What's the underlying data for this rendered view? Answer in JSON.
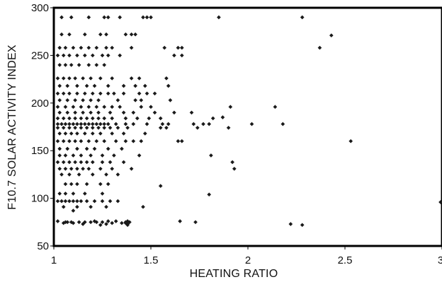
{
  "chart_data": {
    "type": "scatter",
    "title": "",
    "xlabel": "HEATING RATIO",
    "ylabel": "F10.7 SOLAR ACTIVITY INDEX",
    "xlim": [
      1,
      3
    ],
    "ylim": [
      50,
      300
    ],
    "x_ticks": [
      1,
      1.5,
      2,
      2.5,
      3
    ],
    "x_tick_labels": [
      "1",
      "1.5",
      "2",
      "2.5",
      "3"
    ],
    "y_ticks": [
      50,
      100,
      150,
      200,
      250,
      300
    ],
    "y_tick_labels": [
      "50",
      "100",
      "150",
      "200",
      "250",
      "300"
    ],
    "grid": false,
    "legend": "none",
    "series": [
      {
        "marker_color": "#1a1a1a",
        "points": [
          [
            1.04,
            290
          ],
          [
            1.09,
            290
          ],
          [
            1.18,
            290
          ],
          [
            1.26,
            290
          ],
          [
            1.28,
            290
          ],
          [
            1.34,
            290
          ],
          [
            1.46,
            290
          ],
          [
            1.48,
            290
          ],
          [
            1.5,
            290
          ],
          [
            1.85,
            290
          ],
          [
            2.28,
            290
          ],
          [
            1.04,
            272
          ],
          [
            1.08,
            272
          ],
          [
            1.16,
            272
          ],
          [
            1.24,
            272
          ],
          [
            1.27,
            272
          ],
          [
            1.37,
            272
          ],
          [
            1.4,
            272
          ],
          [
            1.42,
            272
          ],
          [
            2.43,
            271
          ],
          [
            1.03,
            258
          ],
          [
            1.06,
            258
          ],
          [
            1.1,
            258
          ],
          [
            1.14,
            258
          ],
          [
            1.18,
            258
          ],
          [
            1.22,
            258
          ],
          [
            1.27,
            258
          ],
          [
            1.3,
            258
          ],
          [
            1.4,
            258
          ],
          [
            1.57,
            258
          ],
          [
            1.64,
            258
          ],
          [
            1.66,
            258
          ],
          [
            2.37,
            258
          ],
          [
            1.02,
            250
          ],
          [
            1.05,
            250
          ],
          [
            1.08,
            250
          ],
          [
            1.12,
            250
          ],
          [
            1.16,
            250
          ],
          [
            1.2,
            250
          ],
          [
            1.25,
            250
          ],
          [
            1.28,
            250
          ],
          [
            1.34,
            250
          ],
          [
            1.62,
            250
          ],
          [
            1.66,
            250
          ],
          [
            1.03,
            240
          ],
          [
            1.06,
            240
          ],
          [
            1.09,
            240
          ],
          [
            1.13,
            240
          ],
          [
            1.18,
            240
          ],
          [
            1.22,
            240
          ],
          [
            1.26,
            240
          ],
          [
            1.02,
            226
          ],
          [
            1.05,
            226
          ],
          [
            1.08,
            226
          ],
          [
            1.11,
            226
          ],
          [
            1.15,
            226
          ],
          [
            1.19,
            226
          ],
          [
            1.24,
            226
          ],
          [
            1.3,
            226
          ],
          [
            1.4,
            226
          ],
          [
            1.44,
            226
          ],
          [
            1.58,
            226
          ],
          [
            1.03,
            218
          ],
          [
            1.07,
            218
          ],
          [
            1.12,
            218
          ],
          [
            1.17,
            218
          ],
          [
            1.21,
            218
          ],
          [
            1.28,
            218
          ],
          [
            1.36,
            218
          ],
          [
            1.42,
            218
          ],
          [
            1.47,
            218
          ],
          [
            1.59,
            218
          ],
          [
            1.02,
            210
          ],
          [
            1.05,
            210
          ],
          [
            1.08,
            210
          ],
          [
            1.12,
            210
          ],
          [
            1.16,
            210
          ],
          [
            1.2,
            210
          ],
          [
            1.24,
            210
          ],
          [
            1.28,
            210
          ],
          [
            1.31,
            210
          ],
          [
            1.36,
            210
          ],
          [
            1.44,
            210
          ],
          [
            1.48,
            210
          ],
          [
            1.52,
            210
          ],
          [
            1.03,
            203
          ],
          [
            1.07,
            203
          ],
          [
            1.11,
            203
          ],
          [
            1.15,
            203
          ],
          [
            1.19,
            203
          ],
          [
            1.23,
            203
          ],
          [
            1.33,
            203
          ],
          [
            1.42,
            203
          ],
          [
            1.45,
            203
          ],
          [
            1.6,
            203
          ],
          [
            1.02,
            196
          ],
          [
            1.06,
            196
          ],
          [
            1.1,
            196
          ],
          [
            1.14,
            196
          ],
          [
            1.18,
            196
          ],
          [
            1.22,
            196
          ],
          [
            1.26,
            196
          ],
          [
            1.3,
            196
          ],
          [
            1.34,
            196
          ],
          [
            1.45,
            196
          ],
          [
            1.5,
            196
          ],
          [
            1.91,
            196
          ],
          [
            2.14,
            196
          ],
          [
            1.03,
            190
          ],
          [
            1.07,
            190
          ],
          [
            1.11,
            190
          ],
          [
            1.15,
            190
          ],
          [
            1.19,
            190
          ],
          [
            1.23,
            190
          ],
          [
            1.29,
            190
          ],
          [
            1.36,
            190
          ],
          [
            1.41,
            190
          ],
          [
            1.52,
            190
          ],
          [
            1.62,
            190
          ],
          [
            1.71,
            190
          ],
          [
            1.02,
            184
          ],
          [
            1.05,
            184
          ],
          [
            1.08,
            184
          ],
          [
            1.11,
            184
          ],
          [
            1.14,
            184
          ],
          [
            1.17,
            184
          ],
          [
            1.2,
            184
          ],
          [
            1.23,
            184
          ],
          [
            1.26,
            184
          ],
          [
            1.3,
            184
          ],
          [
            1.37,
            184
          ],
          [
            1.43,
            184
          ],
          [
            1.49,
            184
          ],
          [
            1.55,
            184
          ],
          [
            1.82,
            184
          ],
          [
            1.87,
            185
          ],
          [
            1.02,
            178
          ],
          [
            1.04,
            178
          ],
          [
            1.06,
            178
          ],
          [
            1.08,
            178
          ],
          [
            1.1,
            178
          ],
          [
            1.12,
            178
          ],
          [
            1.14,
            178
          ],
          [
            1.16,
            178
          ],
          [
            1.18,
            178
          ],
          [
            1.2,
            178
          ],
          [
            1.22,
            178
          ],
          [
            1.24,
            178
          ],
          [
            1.26,
            178
          ],
          [
            1.28,
            178
          ],
          [
            1.32,
            178
          ],
          [
            1.37,
            178
          ],
          [
            1.41,
            178
          ],
          [
            1.48,
            178
          ],
          [
            1.56,
            178
          ],
          [
            1.59,
            178
          ],
          [
            1.72,
            178
          ],
          [
            1.77,
            178
          ],
          [
            1.8,
            178
          ],
          [
            2.02,
            178
          ],
          [
            2.18,
            178
          ],
          [
            1.02,
            174
          ],
          [
            1.05,
            174
          ],
          [
            1.08,
            174
          ],
          [
            1.11,
            174
          ],
          [
            1.14,
            174
          ],
          [
            1.17,
            174
          ],
          [
            1.2,
            174
          ],
          [
            1.23,
            174
          ],
          [
            1.26,
            174
          ],
          [
            1.29,
            174
          ],
          [
            1.33,
            174
          ],
          [
            1.38,
            174
          ],
          [
            1.55,
            174
          ],
          [
            1.58,
            174
          ],
          [
            1.74,
            174
          ],
          [
            1.9,
            174
          ],
          [
            1.03,
            168
          ],
          [
            1.06,
            168
          ],
          [
            1.09,
            168
          ],
          [
            1.12,
            168
          ],
          [
            1.16,
            168
          ],
          [
            1.2,
            168
          ],
          [
            1.24,
            168
          ],
          [
            1.3,
            168
          ],
          [
            1.36,
            168
          ],
          [
            1.47,
            168
          ],
          [
            1.02,
            160
          ],
          [
            1.05,
            160
          ],
          [
            1.08,
            160
          ],
          [
            1.11,
            160
          ],
          [
            1.14,
            160
          ],
          [
            1.18,
            160
          ],
          [
            1.22,
            160
          ],
          [
            1.26,
            160
          ],
          [
            1.32,
            160
          ],
          [
            1.37,
            160
          ],
          [
            1.41,
            160
          ],
          [
            1.45,
            160
          ],
          [
            1.64,
            160
          ],
          [
            1.66,
            160
          ],
          [
            2.53,
            160
          ],
          [
            1.03,
            152
          ],
          [
            1.07,
            152
          ],
          [
            1.12,
            152
          ],
          [
            1.17,
            152
          ],
          [
            1.21,
            152
          ],
          [
            1.28,
            152
          ],
          [
            1.35,
            152
          ],
          [
            1.03,
            145
          ],
          [
            1.06,
            145
          ],
          [
            1.1,
            145
          ],
          [
            1.14,
            145
          ],
          [
            1.19,
            145
          ],
          [
            1.25,
            145
          ],
          [
            1.31,
            145
          ],
          [
            1.44,
            145
          ],
          [
            1.81,
            145
          ],
          [
            1.02,
            138
          ],
          [
            1.05,
            138
          ],
          [
            1.08,
            138
          ],
          [
            1.11,
            138
          ],
          [
            1.14,
            138
          ],
          [
            1.17,
            138
          ],
          [
            1.2,
            138
          ],
          [
            1.25,
            138
          ],
          [
            1.29,
            138
          ],
          [
            1.36,
            138
          ],
          [
            1.92,
            138
          ],
          [
            1.03,
            131
          ],
          [
            1.06,
            131
          ],
          [
            1.09,
            131
          ],
          [
            1.12,
            131
          ],
          [
            1.15,
            131
          ],
          [
            1.18,
            131
          ],
          [
            1.24,
            131
          ],
          [
            1.3,
            131
          ],
          [
            1.4,
            131
          ],
          [
            1.93,
            131
          ],
          [
            1.04,
            125
          ],
          [
            1.08,
            125
          ],
          [
            1.13,
            125
          ],
          [
            1.2,
            125
          ],
          [
            1.27,
            125
          ],
          [
            1.33,
            125
          ],
          [
            1.06,
            115
          ],
          [
            1.09,
            115
          ],
          [
            1.12,
            115
          ],
          [
            1.17,
            115
          ],
          [
            1.24,
            115
          ],
          [
            1.28,
            115
          ],
          [
            1.55,
            113
          ],
          [
            1.03,
            105
          ],
          [
            1.06,
            105
          ],
          [
            1.1,
            105
          ],
          [
            1.16,
            105
          ],
          [
            1.25,
            105
          ],
          [
            1.8,
            104
          ],
          [
            1.02,
            97
          ],
          [
            1.04,
            97
          ],
          [
            1.06,
            97
          ],
          [
            1.08,
            97
          ],
          [
            1.1,
            97
          ],
          [
            1.12,
            97
          ],
          [
            1.14,
            97
          ],
          [
            1.17,
            97
          ],
          [
            1.21,
            97
          ],
          [
            1.25,
            97
          ],
          [
            1.29,
            97
          ],
          [
            1.33,
            97
          ],
          [
            3.0,
            96
          ],
          [
            1.05,
            91
          ],
          [
            1.12,
            91
          ],
          [
            1.19,
            91
          ],
          [
            1.27,
            91
          ],
          [
            1.46,
            91
          ],
          [
            1.1,
            87
          ],
          [
            1.02,
            76
          ],
          [
            1.07,
            75
          ],
          [
            1.1,
            74
          ],
          [
            1.13,
            75
          ],
          [
            1.16,
            75
          ],
          [
            1.19,
            75
          ],
          [
            1.22,
            75
          ],
          [
            1.25,
            75
          ],
          [
            1.28,
            76
          ],
          [
            1.38,
            76
          ],
          [
            1.38,
            72
          ],
          [
            1.65,
            76
          ],
          [
            1.73,
            75
          ],
          [
            2.22,
            73
          ],
          [
            2.28,
            72
          ],
          [
            1.37,
            75
          ],
          [
            1.3,
            74
          ],
          [
            1.05,
            74
          ],
          [
            1.09,
            75
          ],
          [
            1.15,
            73
          ],
          [
            1.21,
            76
          ],
          [
            1.27,
            73
          ],
          [
            1.38,
            73
          ],
          [
            1.37,
            74
          ],
          [
            1.39,
            75
          ],
          [
            1.32,
            76
          ],
          [
            1.06,
            75
          ],
          [
            1.35,
            74
          ],
          [
            1.24,
            72
          ]
        ]
      }
    ]
  }
}
